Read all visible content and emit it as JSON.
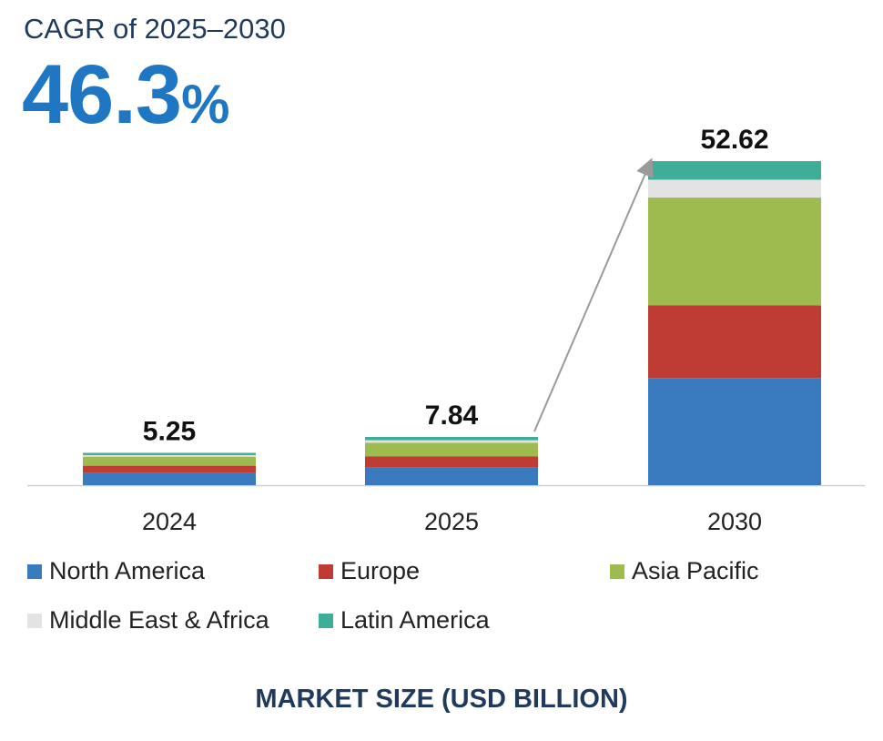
{
  "header": {
    "cagr_label": "CAGR of 2025–2030",
    "cagr_value": "46.3",
    "cagr_unit": "%"
  },
  "footer": {
    "title": "MARKET SIZE (USD BILLION)"
  },
  "chart_data": {
    "type": "bar",
    "stacked": true,
    "categories": [
      "2024",
      "2025",
      "2030"
    ],
    "totals": [
      "5.25",
      "7.84",
      "52.62"
    ],
    "series": [
      {
        "name": "North America",
        "color": "#3a7abf",
        "values": [
          1.95,
          2.9,
          17.4
        ]
      },
      {
        "name": "Europe",
        "color": "#be3c33",
        "values": [
          1.21,
          1.8,
          11.8
        ]
      },
      {
        "name": "Asia Pacific",
        "color": "#9dbb4f",
        "values": [
          1.47,
          2.2,
          17.5
        ]
      },
      {
        "name": "Middle East & Africa",
        "color": "#e3e3e3",
        "values": [
          0.26,
          0.4,
          2.9
        ]
      },
      {
        "name": "Latin America",
        "color": "#3fae99",
        "values": [
          0.36,
          0.54,
          3.02
        ]
      }
    ],
    "ylim": [
      0,
      52.62
    ],
    "grid": false,
    "legend_position": "bottom",
    "annotation": "arrow from 2025 total to 2030 total"
  }
}
